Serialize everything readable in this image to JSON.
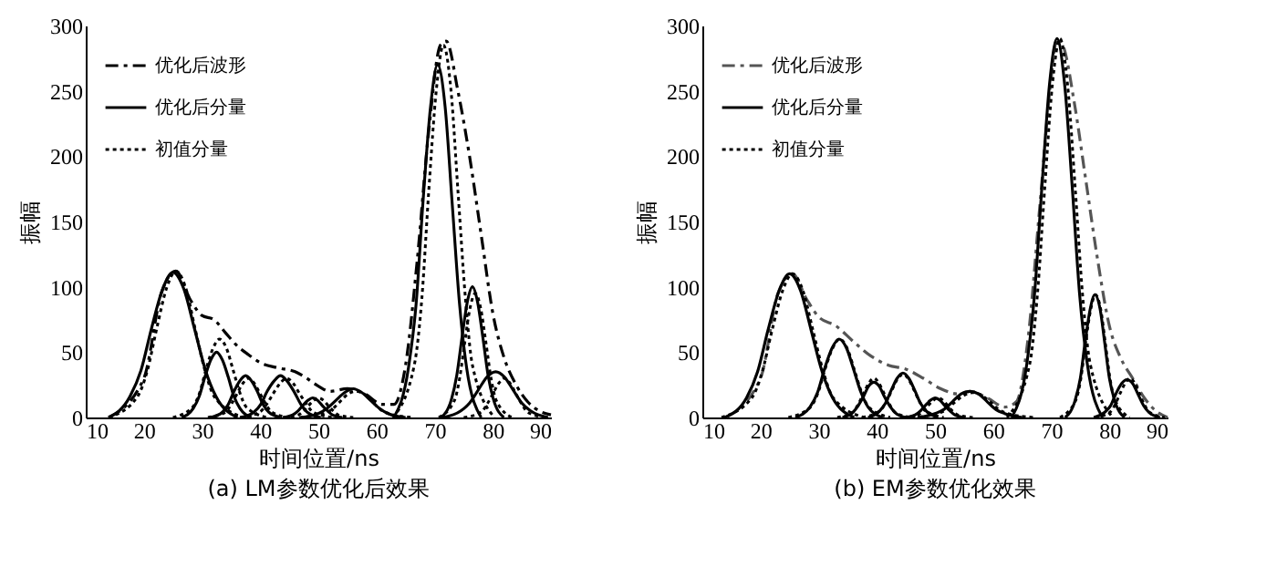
{
  "chart_data": [
    {
      "type": "line",
      "title": "(a) LM参数优化后效果",
      "xlabel": "时间位置/ns",
      "ylabel": "振幅",
      "xlim": [
        10,
        90
      ],
      "xticks": [
        10,
        20,
        30,
        40,
        50,
        60,
        70,
        80,
        90
      ],
      "ylim": [
        0,
        300
      ],
      "yticks": [
        0,
        50,
        100,
        150,
        200,
        250,
        300
      ],
      "grid": false,
      "legend": "top left",
      "series": [
        {
          "name": "优化后波形",
          "color": "#000000",
          "line_style": "dashed",
          "x": [
            14,
            20,
            23,
            25.5,
            28,
            30,
            32,
            34,
            36,
            38,
            40,
            43,
            46,
            48,
            50,
            52,
            55,
            58,
            61,
            63,
            65,
            67,
            69,
            71,
            72,
            74,
            76,
            78,
            80,
            82,
            84,
            86,
            88,
            90
          ],
          "values": [
            0,
            30,
            95,
            112,
            90,
            78,
            75,
            65,
            55,
            48,
            42,
            38,
            35,
            30,
            24,
            20,
            22,
            18,
            10,
            10,
            40,
            120,
            220,
            285,
            288,
            250,
            200,
            140,
            80,
            45,
            25,
            12,
            5,
            2
          ]
        },
        {
          "name": "优化后分量",
          "color": "#000000",
          "line_style": "solid",
          "x": [
            13.9,
            17.6,
            19.5,
            21.3,
            23.2,
            25,
            26.9,
            28.7,
            30.6,
            32.4,
            36.1
          ],
          "values": [
            0,
            16,
            36,
            68,
            98,
            111,
            98,
            68,
            36,
            16,
            0
          ]
        },
        {
          "color": "#000000",
          "line_style": "solid",
          "x": [
            26.5,
            28.5,
            29.5,
            30.5,
            31.5,
            32.5,
            33.5,
            34.5,
            35.5,
            36.5,
            38.5
          ],
          "values": [
            0,
            7,
            16,
            31,
            44,
            50,
            44,
            31,
            16,
            7,
            0
          ]
        },
        {
          "color": "#000000",
          "line_style": "solid",
          "x": [
            31.5,
            33.5,
            34.5,
            35.5,
            36.5,
            37.5,
            38.5,
            39.5,
            40.5,
            41.5,
            43.5
          ],
          "values": [
            0,
            4,
            10,
            20,
            28,
            32,
            28,
            20,
            10,
            4,
            0
          ]
        },
        {
          "color": "#000000",
          "line_style": "solid",
          "x": [
            36.6,
            38.9,
            40.1,
            41.2,
            42.4,
            43.5,
            44.6,
            45.8,
            47,
            48.1,
            50.4
          ],
          "values": [
            0,
            4,
            10,
            20,
            28,
            32,
            28,
            20,
            10,
            4,
            0
          ]
        },
        {
          "color": "#000000",
          "line_style": "solid",
          "x": [
            43.9,
            45.6,
            46.5,
            47.3,
            48.2,
            49,
            49.9,
            50.7,
            51.6,
            52.4,
            54.1
          ],
          "values": [
            0,
            2,
            5,
            9,
            13,
            15,
            13,
            9,
            5,
            2,
            0
          ]
        },
        {
          "color": "#000000",
          "line_style": "solid",
          "x": [
            47,
            50,
            51.5,
            53,
            54.5,
            56,
            57.5,
            59,
            60.5,
            62,
            65
          ],
          "values": [
            0,
            3,
            7,
            13,
            19,
            22,
            19,
            13,
            7,
            3,
            0
          ]
        },
        {
          "color": "#000000",
          "line_style": "solid",
          "x": [
            63,
            65.5,
            66.8,
            68,
            69.3,
            70.5,
            71.8,
            73,
            74.3,
            75.5,
            78
          ],
          "values": [
            0,
            38,
            86,
            165,
            238,
            270,
            238,
            165,
            86,
            38,
            0
          ]
        },
        {
          "color": "#000000",
          "line_style": "solid",
          "x": [
            71.1,
            72.9,
            73.8,
            74.7,
            75.6,
            76.5,
            77.4,
            78.3,
            79.2,
            80.1,
            81.9
          ],
          "values": [
            0,
            14,
            32,
            61,
            88,
            100,
            88,
            61,
            32,
            14,
            0
          ]
        },
        {
          "color": "#000000",
          "line_style": "solid",
          "x": [
            71.5,
            74.5,
            76,
            77.5,
            79,
            80.5,
            82,
            83.5,
            85,
            86.5,
            89.5
          ],
          "values": [
            0,
            5,
            11,
            21,
            31,
            35,
            31,
            21,
            11,
            5,
            0
          ]
        },
        {
          "name": "初值分量",
          "color": "#000000",
          "line_style": "dotted",
          "x": [
            14,
            18.9,
            20.6,
            22.2,
            23.9,
            25.5,
            27.2,
            28.8,
            30.5,
            32.1,
            37.1
          ],
          "values": [
            0,
            16,
            36,
            68,
            99,
            112,
            99,
            68,
            36,
            16,
            0
          ]
        },
        {
          "color": "#000000",
          "line_style": "dotted",
          "x": [
            25,
            28.4,
            29.6,
            30.7,
            31.9,
            33,
            34.2,
            35.3,
            36.5,
            37.6,
            41.1
          ],
          "values": [
            0,
            8,
            19,
            37,
            53,
            60,
            53,
            37,
            19,
            8,
            0
          ]
        },
        {
          "color": "#000000",
          "line_style": "dotted",
          "x": [
            31,
            34,
            35,
            36,
            37,
            38,
            39,
            40,
            41,
            42,
            45
          ],
          "values": [
            0,
            4,
            10,
            18,
            26,
            30,
            26,
            18,
            10,
            4,
            0
          ]
        },
        {
          "color": "#000000",
          "line_style": "dotted",
          "x": [
            36.5,
            39.9,
            41.1,
            42.2,
            43.4,
            44.5,
            45.7,
            46.8,
            48,
            49.1,
            52.5
          ],
          "values": [
            0,
            4,
            10,
            18,
            26,
            30,
            26,
            18,
            10,
            4,
            0
          ]
        },
        {
          "color": "#000000",
          "line_style": "dotted",
          "x": [
            44,
            46.6,
            47.5,
            48.3,
            49.2,
            50,
            50.9,
            51.7,
            52.6,
            53.4,
            56
          ],
          "values": [
            0,
            2,
            5,
            9,
            13,
            15,
            13,
            9,
            5,
            2,
            0
          ]
        },
        {
          "color": "#000000",
          "line_style": "dotted",
          "x": [
            46.7,
            50.9,
            52.3,
            53.7,
            55.1,
            56.5,
            57.9,
            59.3,
            60.7,
            62.1,
            66.3
          ],
          "values": [
            0,
            3,
            6,
            12,
            18,
            20,
            18,
            12,
            6,
            3,
            0
          ]
        },
        {
          "color": "#000000",
          "line_style": "dotted",
          "x": [
            62.8,
            66.5,
            67.8,
            69,
            70.3,
            71.5,
            72.8,
            74,
            75.3,
            76.5,
            80.3
          ],
          "values": [
            0,
            40,
            91,
            174,
            251,
            285,
            251,
            174,
            91,
            40,
            0
          ]
        },
        {
          "color": "#000000",
          "line_style": "dotted",
          "x": [
            70.7,
            73.4,
            74.3,
            75.2,
            76.1,
            77,
            77.9,
            78.8,
            79.7,
            80.6,
            83.3
          ],
          "values": [
            0,
            13,
            30,
            58,
            84,
            95,
            84,
            58,
            30,
            13,
            0
          ]
        },
        {
          "color": "#000000",
          "line_style": "dotted",
          "x": [
            75,
            78,
            79,
            80,
            81,
            82,
            83,
            84,
            85,
            86,
            89
          ],
          "values": [
            0,
            4,
            10,
            18,
            26,
            30,
            26,
            18,
            10,
            4,
            0
          ]
        }
      ]
    },
    {
      "type": "line",
      "title": "(b) EM参数优化效果",
      "xlabel": "时间位置/ns",
      "ylabel": "振幅",
      "xlim": [
        10,
        90
      ],
      "xticks": [
        10,
        20,
        30,
        40,
        50,
        60,
        70,
        80,
        90
      ],
      "ylim": [
        0,
        300
      ],
      "yticks": [
        0,
        50,
        100,
        150,
        200,
        250,
        300
      ],
      "grid": false,
      "legend": "top left",
      "series": [
        {
          "name": "优化后波形",
          "color": "#555555",
          "line_style": "dashed",
          "x": [
            14,
            20,
            23,
            25.5,
            28,
            30,
            33,
            36,
            39,
            42,
            45,
            48,
            51,
            54,
            56,
            59,
            62,
            64,
            66,
            68,
            70,
            71,
            72,
            74,
            76,
            78,
            80,
            82,
            84,
            86,
            88,
            90
          ],
          "values": [
            0,
            30,
            95,
            110,
            90,
            77,
            70,
            58,
            47,
            40,
            37,
            30,
            22,
            18,
            20,
            15,
            8,
            12,
            60,
            160,
            260,
            290,
            285,
            240,
            180,
            120,
            70,
            45,
            30,
            15,
            5,
            0
          ]
        },
        {
          "name": "优化后分量",
          "color": "#000000",
          "line_style": "solid",
          "x": [
            13.9,
            17.6,
            19.5,
            21.3,
            23.2,
            25,
            26.9,
            28.7,
            30.6,
            32.4,
            36.1
          ],
          "values": [
            0,
            15,
            35,
            67,
            97,
            110,
            97,
            67,
            35,
            15,
            0
          ]
        },
        {
          "color": "#000000",
          "line_style": "solid",
          "x": [
            26,
            28.5,
            29.8,
            31,
            32.3,
            33.5,
            34.8,
            36,
            37.3,
            38.5,
            41
          ],
          "values": [
            0,
            8,
            19,
            37,
            53,
            60,
            53,
            37,
            19,
            8,
            0
          ]
        },
        {
          "color": "#000000",
          "line_style": "solid",
          "x": [
            34.1,
            35.9,
            36.8,
            37.7,
            38.6,
            39.5,
            40.4,
            41.3,
            42.2,
            43.1,
            44.9
          ],
          "values": [
            0,
            4,
            9,
            16,
            24,
            27,
            24,
            16,
            9,
            4,
            0
          ]
        },
        {
          "color": "#000000",
          "line_style": "solid",
          "x": [
            38.5,
            40.5,
            41.5,
            42.5,
            43.5,
            44.5,
            45.5,
            46.5,
            47.5,
            48.5,
            50.5
          ],
          "values": [
            0,
            5,
            11,
            21,
            30,
            34,
            30,
            21,
            11,
            5,
            0
          ]
        },
        {
          "color": "#000000",
          "line_style": "solid",
          "x": [
            44.9,
            46.6,
            47.5,
            48.3,
            49.2,
            50,
            50.9,
            51.7,
            52.6,
            53.4,
            55.1
          ],
          "values": [
            0,
            2,
            5,
            9,
            13,
            15,
            13,
            9,
            5,
            2,
            0
          ]
        },
        {
          "color": "#000000",
          "line_style": "solid",
          "x": [
            47,
            50,
            51.5,
            53,
            54.5,
            56,
            57.5,
            59,
            60.5,
            62,
            65
          ],
          "values": [
            0,
            3,
            6,
            12,
            18,
            20,
            18,
            12,
            6,
            3,
            0
          ]
        },
        {
          "color": "#000000",
          "line_style": "solid",
          "x": [
            63.2,
            65.8,
            67.1,
            68.4,
            69.7,
            71,
            72.3,
            73.6,
            74.9,
            76.2,
            78.8
          ],
          "values": [
            0,
            41,
            93,
            177,
            255,
            290,
            255,
            177,
            93,
            41,
            0
          ]
        },
        {
          "color": "#000000",
          "line_style": "solid",
          "x": [
            72.4,
            74.1,
            75,
            75.8,
            76.7,
            77.5,
            78.4,
            79.2,
            80,
            80.9,
            82.6
          ],
          "values": [
            0,
            13,
            30,
            57,
            83,
            94,
            83,
            57,
            30,
            13,
            0
          ]
        },
        {
          "color": "#000000",
          "line_style": "solid",
          "x": [
            77.3,
            79.2,
            80.2,
            81.1,
            82.1,
            83,
            84,
            84.9,
            85.9,
            86.8,
            88.7
          ],
          "values": [
            0,
            4,
            9,
            18,
            26,
            29,
            26,
            18,
            9,
            4,
            0
          ]
        },
        {
          "name": "初值分量",
          "color": "#000000",
          "line_style": "dotted",
          "x": [
            13.3,
            18.5,
            20.3,
            22,
            23.8,
            25.5,
            27.3,
            29,
            30.8,
            32.5,
            37.8
          ],
          "values": [
            0,
            15,
            35,
            67,
            97,
            110,
            97,
            67,
            35,
            15,
            0
          ]
        },
        {
          "color": "#000000",
          "line_style": "dotted",
          "x": [
            24.8,
            28.6,
            29.9,
            31.1,
            32.4,
            33.6,
            34.9,
            36.1,
            37.4,
            38.6,
            42.3
          ],
          "values": [
            0,
            8,
            19,
            37,
            53,
            60,
            53,
            37,
            19,
            8,
            0
          ]
        },
        {
          "color": "#000000",
          "line_style": "dotted",
          "x": [
            33.2,
            35.9,
            36.8,
            37.7,
            38.6,
            39.5,
            40.4,
            41.3,
            42.2,
            43.1,
            45.8
          ],
          "values": [
            0,
            4,
            10,
            18,
            26,
            30,
            26,
            18,
            10,
            4,
            0
          ]
        },
        {
          "color": "#000000",
          "line_style": "dotted",
          "x": [
            37.5,
            40.5,
            41.5,
            42.5,
            43.5,
            44.5,
            45.5,
            46.5,
            47.5,
            48.5,
            51.5
          ],
          "values": [
            0,
            5,
            11,
            20,
            29,
            33,
            29,
            20,
            11,
            5,
            0
          ]
        },
        {
          "color": "#000000",
          "line_style": "dotted",
          "x": [
            44.5,
            47.1,
            48,
            48.8,
            49.7,
            50.5,
            51.4,
            52.2,
            53,
            53.9,
            56.5
          ],
          "values": [
            0,
            2,
            5,
            9,
            13,
            15,
            13,
            9,
            5,
            2,
            0
          ]
        },
        {
          "color": "#000000",
          "line_style": "dotted",
          "x": [
            46,
            50.5,
            52,
            53.5,
            55,
            56.5,
            58,
            59.5,
            61,
            62.5,
            67
          ],
          "values": [
            0,
            3,
            6,
            12,
            17,
            19,
            17,
            12,
            6,
            3,
            0
          ]
        },
        {
          "color": "#000000",
          "line_style": "dotted",
          "x": [
            62.4,
            66.3,
            67.6,
            68.9,
            70.2,
            71.5,
            72.8,
            74.1,
            75.4,
            76.7,
            80.6
          ],
          "values": [
            0,
            41,
            93,
            177,
            255,
            290,
            255,
            177,
            93,
            41,
            0
          ]
        },
        {
          "color": "#000000",
          "line_style": "dotted",
          "x": [
            71.5,
            74.2,
            75.1,
            75.9,
            76.8,
            77.6,
            78.5,
            79.3,
            80.1,
            81,
            83.5
          ],
          "values": [
            0,
            13,
            30,
            57,
            83,
            94,
            83,
            57,
            30,
            13,
            0
          ]
        },
        {
          "color": "#000000",
          "line_style": "dotted",
          "x": [
            77.5,
            80.1,
            81,
            81.8,
            82.7,
            83.5,
            84.4,
            85.2,
            86,
            86.9,
            89.5
          ],
          "values": [
            0,
            4,
            10,
            18,
            26,
            30,
            26,
            18,
            10,
            4,
            0
          ]
        }
      ]
    }
  ]
}
